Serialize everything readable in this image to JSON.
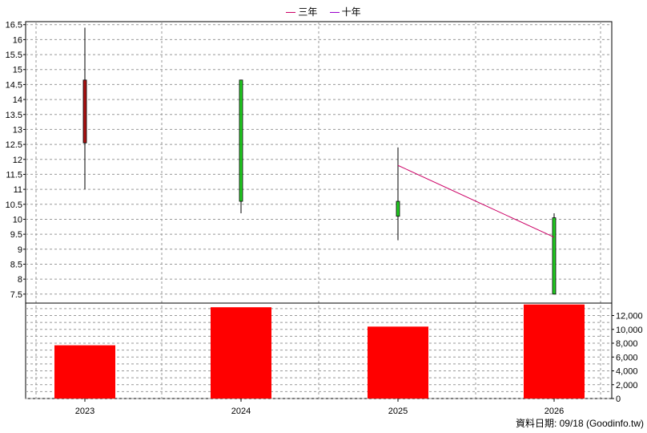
{
  "legend": {
    "items": [
      {
        "label": "三年",
        "color": "#cc0066"
      },
      {
        "label": "十年",
        "color": "#9900cc"
      }
    ]
  },
  "footer": {
    "note": "資料日期: 09/18  (Goodinfo.tw)"
  },
  "chart_data": [
    {
      "type": "candlestick",
      "categories": [
        "2023",
        "2024",
        "2025",
        "2026"
      ],
      "ohlc": [
        {
          "open": 12.55,
          "high": 16.4,
          "low": 11.0,
          "close": 14.65,
          "color": "#aa1111"
        },
        {
          "open": 14.65,
          "high": 14.65,
          "low": 10.2,
          "close": 10.6,
          "color": "#22cc22"
        },
        {
          "open": 10.6,
          "high": 12.4,
          "low": 9.3,
          "close": 10.1,
          "color": "#22cc22"
        },
        {
          "open": 10.05,
          "high": 10.2,
          "low": 7.5,
          "close": 7.5,
          "color": "#22cc22"
        }
      ],
      "lines": [
        {
          "legend": "三年",
          "color": "#cc0066",
          "points": [
            [
              "2025",
              11.8
            ],
            [
              "2026",
              9.4
            ]
          ]
        }
      ],
      "y_ticks": [
        "7.5",
        "8",
        "8.5",
        "9",
        "9.5",
        "10",
        "10.5",
        "11",
        "11.5",
        "12",
        "12.5",
        "13",
        "13.5",
        "14",
        "14.5",
        "15",
        "15.5",
        "16",
        "16.5"
      ],
      "ylim": [
        7.2,
        16.6
      ],
      "grid": true
    },
    {
      "type": "bar",
      "categories": [
        "2023",
        "2024",
        "2025",
        "2026"
      ],
      "values": [
        7700,
        13200,
        10400,
        13600
      ],
      "color": "#ff0000",
      "y_ticks": [
        "0",
        "2,000",
        "4,000",
        "6,000",
        "8,000",
        "10,000",
        "12,000"
      ],
      "ylim": [
        0,
        13800
      ],
      "grid": true
    }
  ]
}
